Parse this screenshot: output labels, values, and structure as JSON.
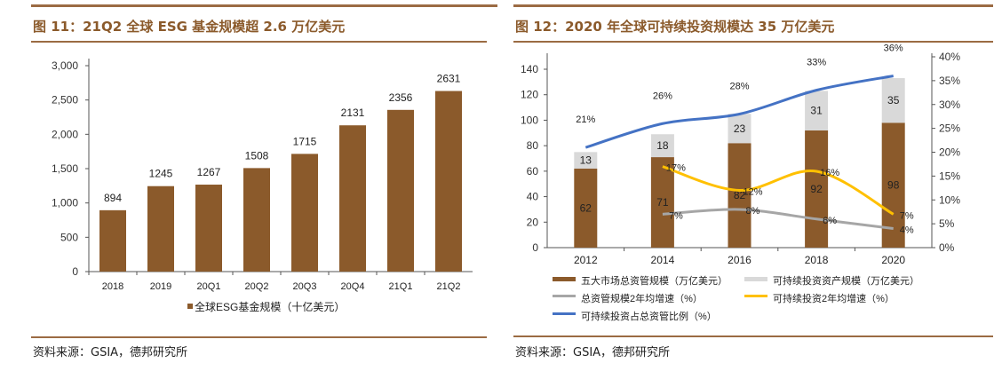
{
  "left": {
    "title": "图 11：21Q2 全球 ESG 基金规模超 2.6 万亿美元",
    "source": "资料来源：GSIA，德邦研究所"
  },
  "right": {
    "title": "图 12：2020 年全球可持续投资规模达 35 万亿美元",
    "source": "资料来源：GSIA，德邦研究所"
  },
  "chart_data": [
    {
      "type": "bar",
      "categories": [
        "2018",
        "2019",
        "20Q1",
        "20Q2",
        "20Q3",
        "20Q4",
        "21Q1",
        "21Q2"
      ],
      "series": [
        {
          "name": "全球ESG基金规模（十亿美元）",
          "values": [
            894,
            1245,
            1267,
            1508,
            1715,
            2131,
            2356,
            2631
          ],
          "color": "#8b5a2b"
        }
      ],
      "ylim": [
        0,
        3000
      ],
      "yticks": [
        "0",
        "500",
        "1,000",
        "1,500",
        "2,000",
        "2,500",
        "3,000"
      ],
      "legend": "bottom",
      "grid": false
    },
    {
      "type": "bar+line",
      "categories": [
        "2012",
        "2014",
        "2016",
        "2018",
        "2020"
      ],
      "bars": [
        {
          "name": "五大市场总资管规模（万亿美元）",
          "values": [
            62,
            71,
            82,
            92,
            98
          ],
          "color": "#8b5a2b"
        },
        {
          "name": "可持续投资资产规模（万亿美元）",
          "values": [
            13,
            18,
            23,
            31,
            35
          ],
          "color": "#d9d9d9"
        }
      ],
      "lines": [
        {
          "name": "总资管规模2年均增速（%）",
          "values": [
            null,
            7,
            8,
            6,
            4
          ],
          "labels": [
            null,
            "7%",
            "8%",
            "6%",
            "4%"
          ],
          "color": "#a6a6a6"
        },
        {
          "name": "可持续投资2年均增速（%）",
          "values": [
            null,
            17,
            12,
            16,
            7
          ],
          "labels": [
            null,
            "17%",
            "12%",
            "16%",
            "7%"
          ],
          "color": "#ffc000"
        },
        {
          "name": "可持续投资占总资管比例（%）",
          "values": [
            21,
            26,
            28,
            33,
            36
          ],
          "labels": [
            "21%",
            "26%",
            "28%",
            "33%",
            "36%"
          ],
          "color": "#4472c4"
        }
      ],
      "ylim": [
        0,
        140
      ],
      "yticks": [
        "0",
        "20",
        "40",
        "60",
        "80",
        "100",
        "120",
        "140"
      ],
      "y2lim": [
        0,
        40
      ],
      "y2ticks": [
        "0%",
        "5%",
        "10%",
        "15%",
        "20%",
        "25%",
        "30%",
        "35%",
        "40%"
      ],
      "legend": "bottom",
      "grid": false
    }
  ]
}
